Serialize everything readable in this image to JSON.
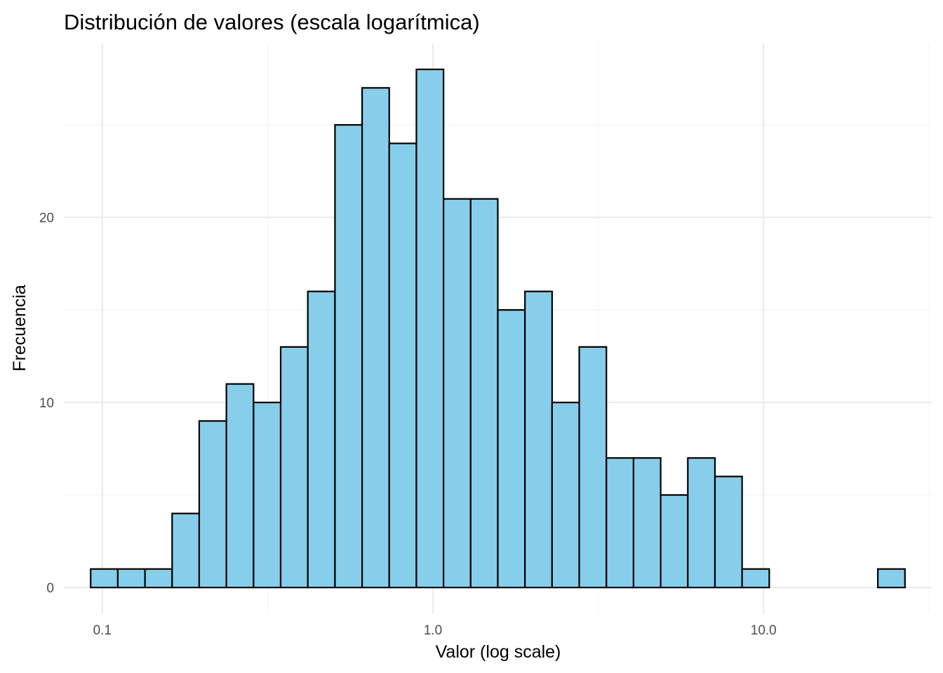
{
  "chart_data": {
    "type": "bar",
    "title": "Distribución de valores (escala logarítmica)",
    "xlabel": "Valor (log scale)",
    "ylabel": "Frecuencia",
    "x_scale": "log10",
    "x_bin_edges": [
      0.0922,
      0.1114,
      0.1346,
      0.1626,
      0.1964,
      0.2373,
      0.2867,
      0.3463,
      0.4184,
      0.5055,
      0.6106,
      0.7377,
      0.8912,
      1.0766,
      1.3006,
      1.5712,
      1.8982,
      2.2932,
      2.7703,
      3.3468,
      4.0433,
      4.8846,
      5.9011,
      7.129,
      8.6125,
      10.4046,
      12.5697,
      15.1853,
      18.3453,
      22.1627,
      26.7745
    ],
    "values": [
      1,
      1,
      1,
      4,
      9,
      11,
      10,
      13,
      16,
      25,
      27,
      24,
      28,
      21,
      21,
      15,
      16,
      10,
      13,
      7,
      7,
      5,
      7,
      6,
      1,
      0,
      0,
      0,
      0,
      1
    ],
    "x_ticks": [
      0.1,
      1.0,
      10.0
    ],
    "x_tick_labels": [
      "0.1",
      "1.0",
      "10.0"
    ],
    "y_ticks": [
      0,
      10,
      20
    ],
    "y_tick_labels": [
      "0",
      "10",
      "20"
    ],
    "ylim": [
      -1.4,
      29.4
    ],
    "xlim": [
      0.0765,
      32.27
    ],
    "grid": true,
    "colors": {
      "fill": "#87ceeb",
      "edge": "#000000",
      "grid": "#ebebeb",
      "tick_text": "#4d4d4d"
    }
  }
}
